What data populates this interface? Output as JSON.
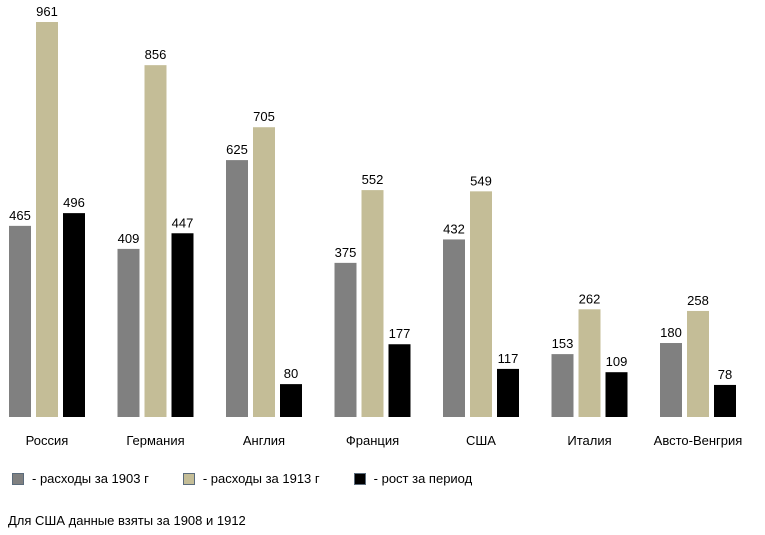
{
  "chart_data": {
    "type": "bar",
    "categories": [
      "Россия",
      "Германия",
      "Англия",
      "Франция",
      "США",
      "Италия",
      "Австо-Венгрия"
    ],
    "series": [
      {
        "name": "-  расходы за 1903 г",
        "color": "#808080",
        "values": [
          465,
          409,
          625,
          375,
          432,
          153,
          180
        ]
      },
      {
        "name": "- расходы за 1913 г",
        "color": "#c4bd97",
        "values": [
          961,
          856,
          705,
          552,
          549,
          262,
          258
        ]
      },
      {
        "name": "- рост за период",
        "color": "#000000",
        "values": [
          496,
          447,
          80,
          177,
          117,
          109,
          78
        ]
      }
    ],
    "ylim": [
      0,
      961
    ],
    "grid": false,
    "legend_position": "bottom",
    "data_labels": true,
    "note": "Для США данные взяты за 1908 и 1912"
  }
}
